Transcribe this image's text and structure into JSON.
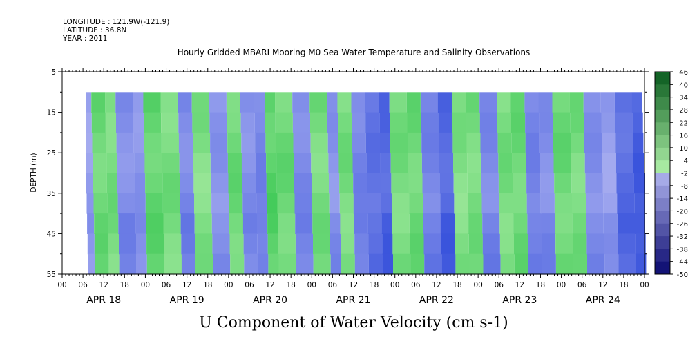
{
  "header": {
    "longitude": "LONGITUDE : 121.9W(-121.9)",
    "latitude": "LATITUDE : 36.8N",
    "year": "YEAR : 2011"
  },
  "chart_data": {
    "type": "heatmap",
    "title": "Hourly Gridded MBARI Mooring M0 Sea Water Temperature and Salinity Observations",
    "xlabel": "U Component of Water Velocity (cm s-1)",
    "ylabel": "DEPTH (m)",
    "ylim": [
      5,
      55
    ],
    "y_inverted": true,
    "y_ticks": [
      "5",
      "15",
      "25",
      "35",
      "45",
      "55"
    ],
    "x_hours_range": [
      0,
      168
    ],
    "x_tick_labels": [
      "00",
      "06",
      "12",
      "18",
      "00",
      "06",
      "12",
      "18",
      "00",
      "06",
      "12",
      "18",
      "00",
      "06",
      "12",
      "18",
      "00",
      "06",
      "12",
      "18",
      "00",
      "06",
      "12",
      "18",
      "00",
      "06",
      "12",
      "18",
      "00"
    ],
    "date_labels": [
      "APR 18",
      "APR 19",
      "APR 20",
      "APR 21",
      "APR 22",
      "APR 23",
      "APR 24"
    ],
    "data_start_hour": 7,
    "data_end_hour": 168,
    "data_top_depth": 10,
    "data_bottom_depth": 55,
    "colorbar": {
      "levels": [
        "46",
        "40",
        "34",
        "28",
        "22",
        "16",
        "10",
        "4",
        "-2",
        "-8",
        "-14",
        "-20",
        "-26",
        "-32",
        "-38",
        "-44",
        "-50"
      ],
      "positive_color": "#2ec24a",
      "near_zero_positive": "#a8eea0",
      "near_zero_negative": "#b0b4f0",
      "negative_color": "#3f55dd"
    },
    "bands": [
      {
        "hour": 7.5,
        "u": -4
      },
      {
        "hour": 9,
        "u": 6
      },
      {
        "hour": 13,
        "u": 5
      },
      {
        "hour": 16,
        "u": -7
      },
      {
        "hour": 21,
        "u": -6
      },
      {
        "hour": 24,
        "u": 7
      },
      {
        "hour": 29,
        "u": 5
      },
      {
        "hour": 34,
        "u": -8
      },
      {
        "hour": 38,
        "u": 4
      },
      {
        "hour": 43,
        "u": -6
      },
      {
        "hour": 48,
        "u": 6
      },
      {
        "hour": 52,
        "u": -7
      },
      {
        "hour": 56,
        "u": -9
      },
      {
        "hour": 59,
        "u": 8
      },
      {
        "hour": 62,
        "u": 6
      },
      {
        "hour": 67,
        "u": -8
      },
      {
        "hour": 72,
        "u": 5
      },
      {
        "hour": 77,
        "u": -6
      },
      {
        "hour": 80,
        "u": 5
      },
      {
        "hour": 84,
        "u": -9
      },
      {
        "hour": 88,
        "u": -12
      },
      {
        "hour": 92,
        "u": -14
      },
      {
        "hour": 95,
        "u": 5
      },
      {
        "hour": 100,
        "u": 6
      },
      {
        "hour": 104,
        "u": -9
      },
      {
        "hour": 109,
        "u": -14
      },
      {
        "hour": 113,
        "u": 4
      },
      {
        "hour": 117,
        "u": 5
      },
      {
        "hour": 121,
        "u": -8
      },
      {
        "hour": 126,
        "u": 5
      },
      {
        "hour": 130,
        "u": 6
      },
      {
        "hour": 134,
        "u": -9
      },
      {
        "hour": 138,
        "u": -7
      },
      {
        "hour": 142,
        "u": 6
      },
      {
        "hour": 147,
        "u": 5
      },
      {
        "hour": 151,
        "u": -7
      },
      {
        "hour": 156,
        "u": -4
      },
      {
        "hour": 160,
        "u": -13
      },
      {
        "hour": 165,
        "u": -16
      },
      {
        "hour": 168,
        "u": -12
      }
    ]
  }
}
